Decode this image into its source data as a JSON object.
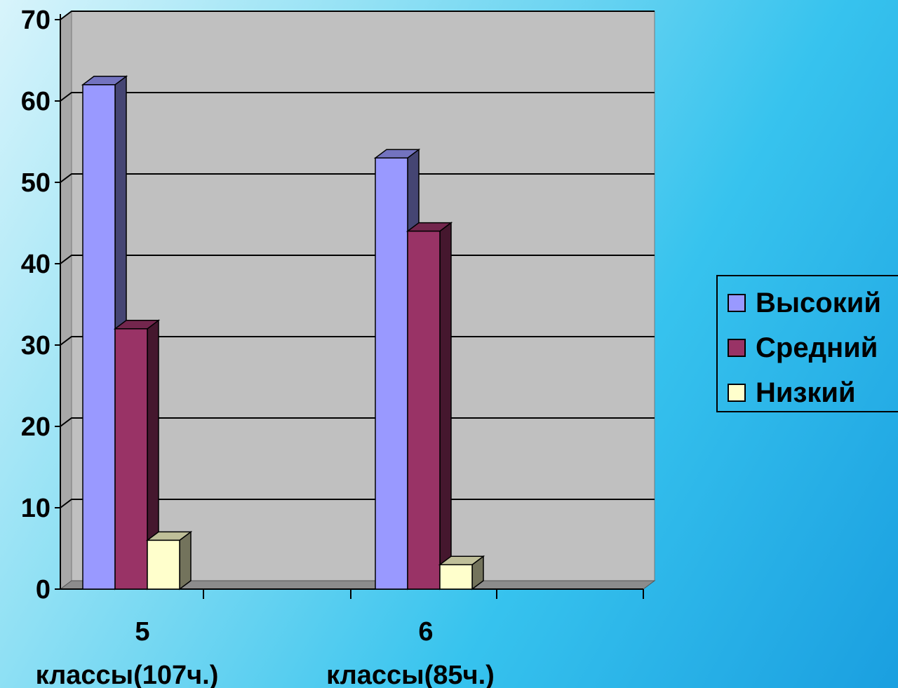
{
  "chart_data": {
    "type": "bar",
    "categories": [
      "5 классы(107ч.)",
      "6 классы(85ч.)"
    ],
    "category_lines": [
      [
        "5",
        "классы(107ч.)"
      ],
      [
        "6",
        "классы(85ч.)"
      ]
    ],
    "series": [
      {
        "name": "Высокий",
        "values": [
          62,
          53
        ],
        "color": "#9999ff"
      },
      {
        "name": "Средний",
        "values": [
          32,
          44
        ],
        "color": "#993366"
      },
      {
        "name": "Низкий",
        "values": [
          6,
          3
        ],
        "color": "#ffffcc"
      }
    ],
    "y_ticks": [
      "0",
      "10",
      "20",
      "30",
      "40",
      "50",
      "60",
      "70"
    ],
    "ylim": [
      0,
      70
    ],
    "grid": true,
    "legend_position": "right",
    "wall_color": "#c0c0c0"
  }
}
